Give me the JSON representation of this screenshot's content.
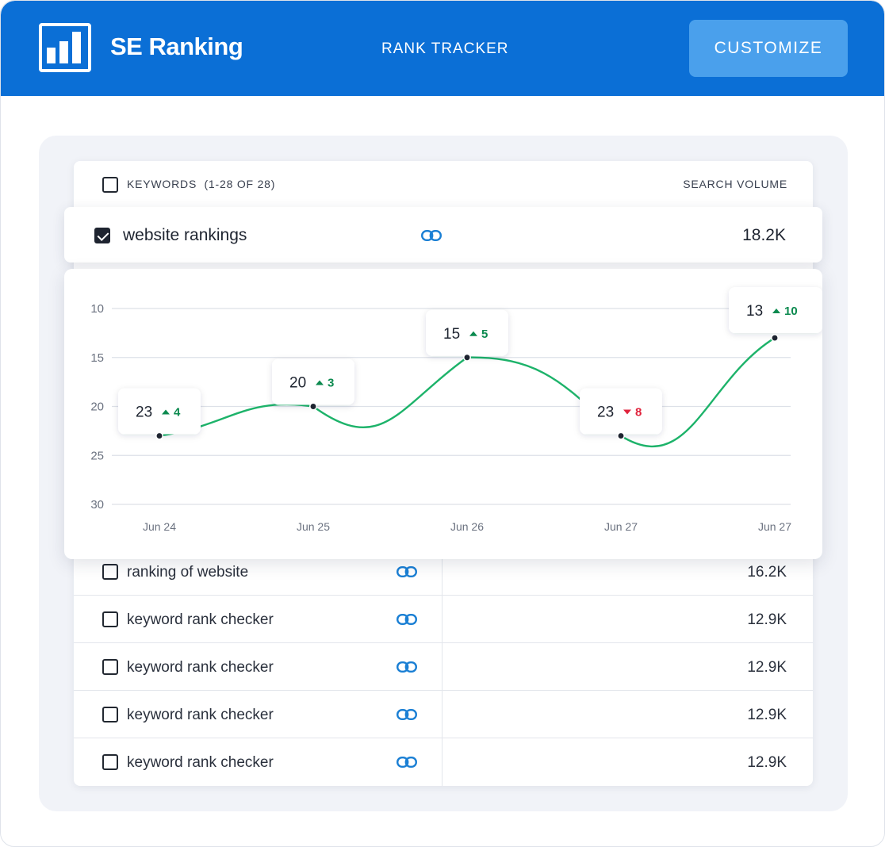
{
  "header": {
    "brand": "SE Ranking",
    "nav_title": "RANK TRACKER",
    "customize_label": "CUSTOMIZE",
    "logo_icon": "bar-chart-icon",
    "background_color": "#0b6fd6",
    "button_color": "#4aa0ec"
  },
  "table": {
    "header_keywords": "KEYWORDS",
    "header_count": "(1-28 OF 28)",
    "header_volume": "SEARCH VOLUME",
    "link_icon": "link-icon",
    "selected": {
      "keyword": "website rankings",
      "volume": "18.2K",
      "checked": true
    },
    "rows": [
      {
        "keyword": "ranking of website",
        "volume": "16.2K",
        "checked": false
      },
      {
        "keyword": "keyword rank checker",
        "volume": "12.9K",
        "checked": false
      },
      {
        "keyword": "keyword rank checker",
        "volume": "12.9K",
        "checked": false
      },
      {
        "keyword": "keyword rank checker",
        "volume": "12.9K",
        "checked": false
      },
      {
        "keyword": "keyword rank checker",
        "volume": "12.9K",
        "checked": false
      }
    ]
  },
  "chart_data": {
    "type": "line",
    "x": [
      "Jun 24",
      "Jun 25",
      "Jun 26",
      "Jun 27",
      "Jun 27"
    ],
    "y_ticks": [
      10,
      15,
      20,
      25,
      30
    ],
    "ylim": [
      10,
      30
    ],
    "y_inverted": true,
    "grid": true,
    "line_color": "#1db36a",
    "up_color": "#0c8a4f",
    "down_color": "#e0233c",
    "points": [
      {
        "x": "Jun 24",
        "position": 23,
        "change": 4,
        "direction": "up"
      },
      {
        "x": "Jun 25",
        "position": 20,
        "change": 3,
        "direction": "up"
      },
      {
        "x": "Jun 26",
        "position": 15,
        "change": 5,
        "direction": "up"
      },
      {
        "x": "Jun 27",
        "position": 23,
        "change": 8,
        "direction": "down"
      },
      {
        "x": "Jun 27",
        "position": 13,
        "change": 10,
        "direction": "up"
      }
    ]
  }
}
